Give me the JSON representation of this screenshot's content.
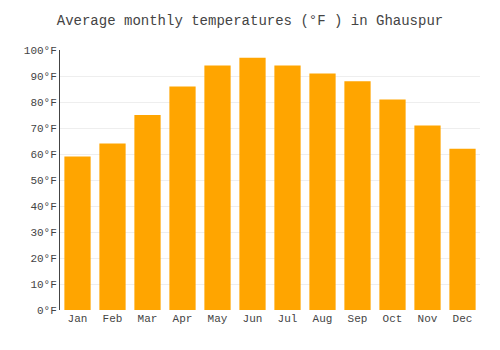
{
  "chart_data": {
    "type": "bar",
    "title": "Average monthly temperatures (°F ) in Ghauspur",
    "categories": [
      "Jan",
      "Feb",
      "Mar",
      "Apr",
      "May",
      "Jun",
      "Jul",
      "Aug",
      "Sep",
      "Oct",
      "Nov",
      "Dec"
    ],
    "values": [
      59,
      64,
      75,
      86,
      94,
      97,
      94,
      91,
      88,
      81,
      71,
      62
    ],
    "color": "#FFA500",
    "ylim": [
      0,
      100
    ],
    "yticks": [
      {
        "value": 0,
        "label": "0°F"
      },
      {
        "value": 10,
        "label": "10°F"
      },
      {
        "value": 20,
        "label": "20°F"
      },
      {
        "value": 30,
        "label": "30°F"
      },
      {
        "value": 40,
        "label": "40°F"
      },
      {
        "value": 50,
        "label": "50°F"
      },
      {
        "value": 60,
        "label": "60°F"
      },
      {
        "value": 70,
        "label": "70°F"
      },
      {
        "value": 80,
        "label": "80°F"
      },
      {
        "value": 90,
        "label": "90°F"
      },
      {
        "value": 100,
        "label": "100°F"
      }
    ],
    "grid": true
  }
}
